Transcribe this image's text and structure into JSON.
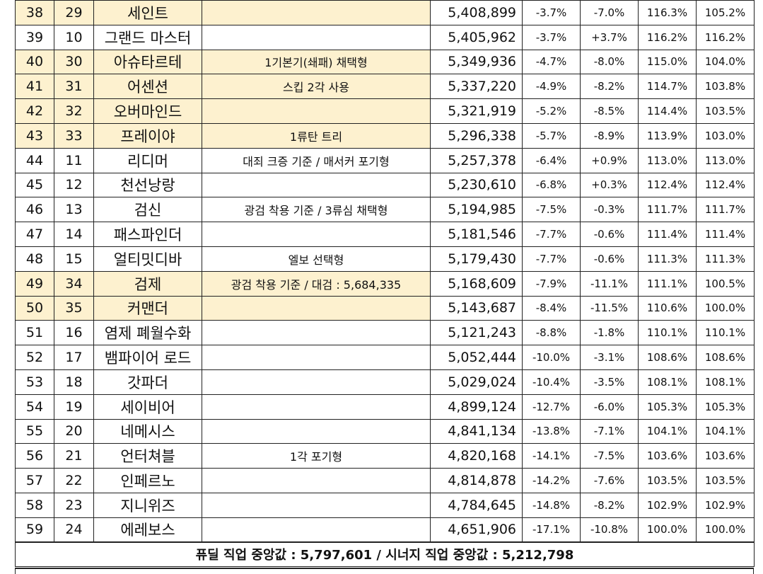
{
  "rows": [
    {
      "rank": "38",
      "sub": "29",
      "name": "세인트",
      "note": "",
      "score": "5,408,899",
      "p1": "-3.7%",
      "p2": "-7.0%",
      "p3": "116.3%",
      "p4": "105.2%",
      "hl": true
    },
    {
      "rank": "39",
      "sub": "10",
      "name": "그랜드 마스터",
      "note": "",
      "score": "5,405,962",
      "p1": "-3.7%",
      "p2": "+3.7%",
      "p3": "116.2%",
      "p4": "116.2%",
      "hl": false
    },
    {
      "rank": "40",
      "sub": "30",
      "name": "아슈타르테",
      "note": "1기본기(쇄패) 채택형",
      "score": "5,349,936",
      "p1": "-4.7%",
      "p2": "-8.0%",
      "p3": "115.0%",
      "p4": "104.0%",
      "hl": true
    },
    {
      "rank": "41",
      "sub": "31",
      "name": "어센션",
      "note": "스킵 2각 사용",
      "score": "5,337,220",
      "p1": "-4.9%",
      "p2": "-8.2%",
      "p3": "114.7%",
      "p4": "103.8%",
      "hl": true
    },
    {
      "rank": "42",
      "sub": "32",
      "name": "오버마인드",
      "note": "",
      "score": "5,321,919",
      "p1": "-5.2%",
      "p2": "-8.5%",
      "p3": "114.4%",
      "p4": "103.5%",
      "hl": true
    },
    {
      "rank": "43",
      "sub": "33",
      "name": "프레이야",
      "note": "1류탄 트리",
      "score": "5,296,338",
      "p1": "-5.7%",
      "p2": "-8.9%",
      "p3": "113.9%",
      "p4": "103.0%",
      "hl": true
    },
    {
      "rank": "44",
      "sub": "11",
      "name": "리디머",
      "note": "대죄 크증 기준 / 매서커 포기형",
      "score": "5,257,378",
      "p1": "-6.4%",
      "p2": "+0.9%",
      "p3": "113.0%",
      "p4": "113.0%",
      "hl": false
    },
    {
      "rank": "45",
      "sub": "12",
      "name": "천선낭랑",
      "note": "",
      "score": "5,230,610",
      "p1": "-6.8%",
      "p2": "+0.3%",
      "p3": "112.4%",
      "p4": "112.4%",
      "hl": false
    },
    {
      "rank": "46",
      "sub": "13",
      "name": "검신",
      "note": "광검 착용 기준 / 3류심 채택형",
      "score": "5,194,985",
      "p1": "-7.5%",
      "p2": "-0.3%",
      "p3": "111.7%",
      "p4": "111.7%",
      "hl": false
    },
    {
      "rank": "47",
      "sub": "14",
      "name": "패스파인더",
      "note": "",
      "score": "5,181,546",
      "p1": "-7.7%",
      "p2": "-0.6%",
      "p3": "111.4%",
      "p4": "111.4%",
      "hl": false
    },
    {
      "rank": "48",
      "sub": "15",
      "name": "얼티밋디바",
      "note": "엘보 선택형",
      "score": "5,179,430",
      "p1": "-7.7%",
      "p2": "-0.6%",
      "p3": "111.3%",
      "p4": "111.3%",
      "hl": false
    },
    {
      "rank": "49",
      "sub": "34",
      "name": "검제",
      "note": "광검 착용 기준 / 대검 : 5,684,335",
      "score": "5,168,609",
      "p1": "-7.9%",
      "p2": "-11.1%",
      "p3": "111.1%",
      "p4": "100.5%",
      "hl": true
    },
    {
      "rank": "50",
      "sub": "35",
      "name": "커맨더",
      "note": "",
      "score": "5,143,687",
      "p1": "-8.4%",
      "p2": "-11.5%",
      "p3": "110.6%",
      "p4": "100.0%",
      "hl": true
    },
    {
      "rank": "51",
      "sub": "16",
      "name": "염제 폐월수화",
      "note": "",
      "score": "5,121,243",
      "p1": "-8.8%",
      "p2": "-1.8%",
      "p3": "110.1%",
      "p4": "110.1%",
      "hl": false
    },
    {
      "rank": "52",
      "sub": "17",
      "name": "뱀파이어 로드",
      "note": "",
      "score": "5,052,444",
      "p1": "-10.0%",
      "p2": "-3.1%",
      "p3": "108.6%",
      "p4": "108.6%",
      "hl": false
    },
    {
      "rank": "53",
      "sub": "18",
      "name": "갓파더",
      "note": "",
      "score": "5,029,024",
      "p1": "-10.4%",
      "p2": "-3.5%",
      "p3": "108.1%",
      "p4": "108.1%",
      "hl": false
    },
    {
      "rank": "54",
      "sub": "19",
      "name": "세이비어",
      "note": "",
      "score": "4,899,124",
      "p1": "-12.7%",
      "p2": "-6.0%",
      "p3": "105.3%",
      "p4": "105.3%",
      "hl": false
    },
    {
      "rank": "55",
      "sub": "20",
      "name": "네메시스",
      "note": "",
      "score": "4,841,134",
      "p1": "-13.8%",
      "p2": "-7.1%",
      "p3": "104.1%",
      "p4": "104.1%",
      "hl": false
    },
    {
      "rank": "56",
      "sub": "21",
      "name": "언터쳐블",
      "note": "1각 포기형",
      "score": "4,820,168",
      "p1": "-14.1%",
      "p2": "-7.5%",
      "p3": "103.6%",
      "p4": "103.6%",
      "hl": false
    },
    {
      "rank": "57",
      "sub": "22",
      "name": "인페르노",
      "note": "",
      "score": "4,814,878",
      "p1": "-14.2%",
      "p2": "-7.6%",
      "p3": "103.5%",
      "p4": "103.5%",
      "hl": false
    },
    {
      "rank": "58",
      "sub": "23",
      "name": "지니위즈",
      "note": "",
      "score": "4,784,645",
      "p1": "-14.8%",
      "p2": "-8.2%",
      "p3": "102.9%",
      "p4": "102.9%",
      "hl": false
    },
    {
      "rank": "59",
      "sub": "24",
      "name": "에레보스",
      "note": "",
      "score": "4,651,906",
      "p1": "-17.1%",
      "p2": "-10.8%",
      "p3": "100.0%",
      "p4": "100.0%",
      "hl": false
    }
  ],
  "footer": {
    "text": "퓨딜 직업 중앙값 : 5,797,601 / 시너지 직업 중앙값 : 5,212,798"
  },
  "colors": {
    "highlight": "#fdf1cf",
    "border": "#222222"
  }
}
